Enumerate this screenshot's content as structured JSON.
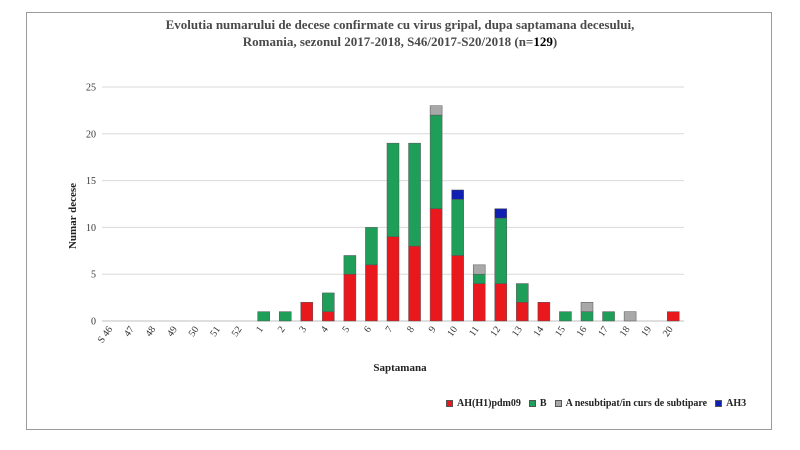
{
  "chart_data": {
    "type": "bar",
    "stacked": true,
    "title_line1": "Evolutia numarului de decese confirmate cu virus gripal, dupa saptamana decesului,",
    "title_line2_prefix": "Romania, sezonul 2017-2018, S46/2017-S20/2018 (n=",
    "title_n": "129",
    "title_line2_suffix": ")",
    "xlabel": "Saptamana",
    "ylabel": "Numar decese",
    "ylim": [
      0,
      25
    ],
    "yticks": [
      0,
      5,
      10,
      15,
      20,
      25
    ],
    "grid": true,
    "legend_position": "bottom-right",
    "categories": [
      "S 46",
      "47",
      "48",
      "49",
      "50",
      "51",
      "52",
      "1",
      "2",
      "3",
      "4",
      "5",
      "6",
      "7",
      "8",
      "9",
      "10",
      "11",
      "12",
      "13",
      "14",
      "15",
      "16",
      "17",
      "18",
      "19",
      "20"
    ],
    "series": [
      {
        "name": "AH(H1)pdm09",
        "color": "#e8181d",
        "values": [
          0,
          0,
          0,
          0,
          0,
          0,
          0,
          0,
          0,
          2,
          1,
          5,
          6,
          9,
          8,
          12,
          7,
          4,
          4,
          2,
          2,
          0,
          0,
          0,
          0,
          0,
          1
        ]
      },
      {
        "name": "B",
        "color": "#1f9e5a",
        "values": [
          0,
          0,
          0,
          0,
          0,
          0,
          0,
          1,
          1,
          0,
          2,
          2,
          4,
          10,
          11,
          10,
          6,
          1,
          7,
          2,
          0,
          1,
          1,
          1,
          0,
          0,
          0
        ]
      },
      {
        "name": "A nesubtipat/in curs de subtipare",
        "color": "#a8a8a8",
        "values": [
          0,
          0,
          0,
          0,
          0,
          0,
          0,
          0,
          0,
          0,
          0,
          0,
          0,
          0,
          0,
          1,
          0,
          1,
          0,
          0,
          0,
          0,
          1,
          0,
          1,
          0,
          0
        ]
      },
      {
        "name": "AH3",
        "color": "#1020b0",
        "values": [
          0,
          0,
          0,
          0,
          0,
          0,
          0,
          0,
          0,
          0,
          0,
          0,
          0,
          0,
          0,
          0,
          1,
          0,
          1,
          0,
          0,
          0,
          0,
          0,
          0,
          0,
          0
        ]
      }
    ]
  }
}
